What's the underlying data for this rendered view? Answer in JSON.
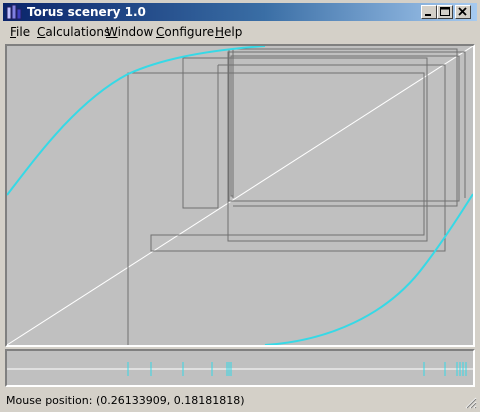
{
  "window": {
    "title": "Torus scenery 1.0",
    "icon": "app-icon"
  },
  "title_buttons": {
    "minimize": "minimize-icon",
    "maximize": "maximize-icon",
    "close": "close-icon"
  },
  "menu": {
    "items": [
      {
        "pre": "",
        "acc": "F",
        "post": "ile"
      },
      {
        "pre": "",
        "acc": "C",
        "post": "alculations"
      },
      {
        "pre": "",
        "acc": "W",
        "post": "indow"
      },
      {
        "pre": "",
        "acc": "C",
        "post": "onfigure"
      },
      {
        "pre": "",
        "acc": "H",
        "post": "elp"
      }
    ]
  },
  "status": {
    "text": "Mouse position: (0.26133909, 0.18181818)"
  },
  "colors": {
    "curve": "#36d9e6",
    "diagonal": "#ffffff",
    "cobweb": "#707070",
    "canvas_bg": "#c0c0c0"
  }
}
